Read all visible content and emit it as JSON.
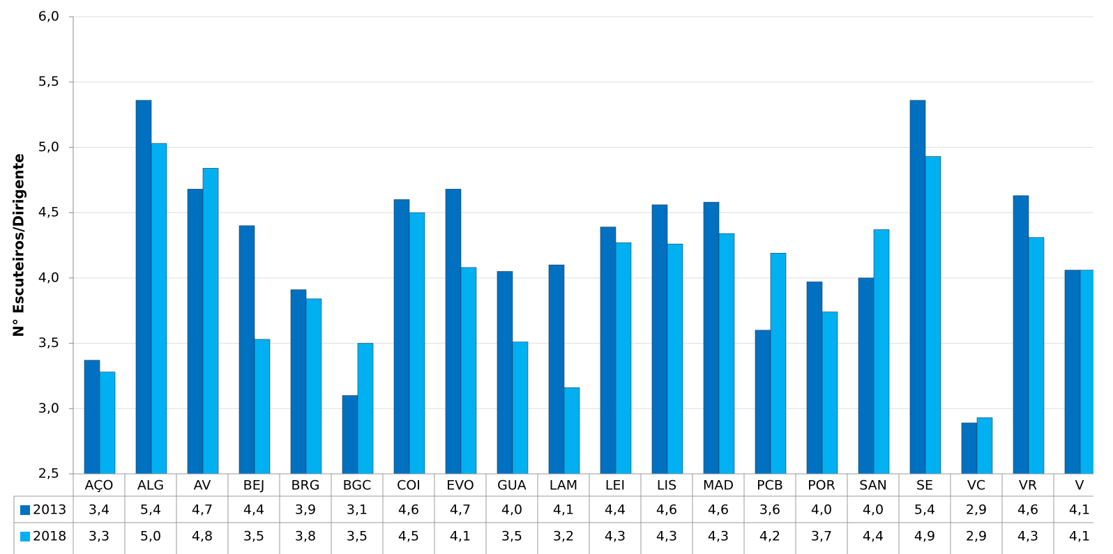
{
  "chart_data": {
    "type": "bar",
    "y_axis_label": "N° Escuteiros/Dirigente",
    "categories": [
      "AÇO",
      "ALG",
      "AV",
      "BEJ",
      "BRG",
      "BGC",
      "COI",
      "EVO",
      "GUA",
      "LAM",
      "LEI",
      "LIS",
      "MAD",
      "PCB",
      "POR",
      "SAN",
      "SE",
      "VC",
      "VR",
      "V"
    ],
    "series": [
      {
        "name": "2013",
        "color": "#0070c0",
        "values": [
          3.37,
          5.36,
          4.68,
          4.4,
          3.91,
          3.1,
          4.6,
          4.68,
          4.05,
          4.1,
          4.39,
          4.56,
          4.58,
          3.6,
          3.97,
          4.0,
          5.36,
          2.89,
          4.63,
          4.06
        ],
        "value_labels": [
          "3,4",
          "5,4",
          "4,7",
          "4,4",
          "3,9",
          "3,1",
          "4,6",
          "4,7",
          "4,0",
          "4,1",
          "4,4",
          "4,6",
          "4,6",
          "3,6",
          "4,0",
          "4,0",
          "5,4",
          "2,9",
          "4,6",
          "4,1"
        ]
      },
      {
        "name": "2018",
        "color": "#00b0f0",
        "values": [
          3.28,
          5.03,
          4.84,
          3.53,
          3.84,
          3.5,
          4.5,
          4.08,
          3.51,
          3.16,
          4.27,
          4.26,
          4.34,
          4.19,
          3.74,
          4.37,
          4.93,
          2.93,
          4.31,
          4.06
        ],
        "value_labels": [
          "3,3",
          "5,0",
          "4,8",
          "3,5",
          "3,8",
          "3,5",
          "4,5",
          "4,1",
          "3,5",
          "3,2",
          "4,3",
          "4,3",
          "4,3",
          "4,2",
          "3,7",
          "4,4",
          "4,9",
          "2,9",
          "4,3",
          "4,1"
        ]
      }
    ],
    "ylim": [
      2.5,
      6.0
    ],
    "yticks": [
      {
        "value": 2.5,
        "label": "2,5"
      },
      {
        "value": 3.0,
        "label": "3,0"
      },
      {
        "value": 3.5,
        "label": "3,5"
      },
      {
        "value": 4.0,
        "label": "4,0"
      },
      {
        "value": 4.5,
        "label": "4,5"
      },
      {
        "value": 5.0,
        "label": "5,0"
      },
      {
        "value": 5.5,
        "label": "5,5"
      },
      {
        "value": 6.0,
        "label": "6,0"
      }
    ],
    "grid": true
  }
}
